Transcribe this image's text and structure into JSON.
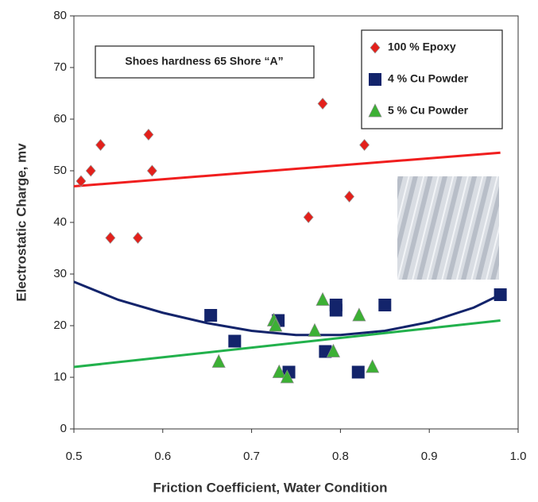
{
  "chart_data": {
    "type": "scatter",
    "annotation": "Shoes hardness 65 Shore “A”",
    "x_label": "Friction Coefficient, Water  Condition",
    "y_label": "Electrostatic Charge, mv",
    "xlim": [
      0.5,
      1.0
    ],
    "ylim": [
      0,
      80
    ],
    "xticks": [
      0.5,
      0.6,
      0.7,
      0.8,
      0.9,
      {
        "value": 1.0,
        "label": "1.0"
      }
    ],
    "yticks": [
      0,
      10,
      20,
      30,
      40,
      50,
      60,
      70,
      80
    ],
    "series": [
      {
        "name": "100 % Epoxy",
        "color": "#e3201b",
        "marker": "diamond",
        "x": [
          0.508,
          0.519,
          0.53,
          0.541,
          0.572,
          0.584,
          0.588,
          0.764,
          0.78,
          0.81,
          0.827
        ],
        "values": [
          48,
          50,
          55,
          37,
          37,
          57,
          50,
          41,
          63,
          45,
          55
        ]
      },
      {
        "name": "4 % Cu Powder",
        "color": "#13246b",
        "marker": "square",
        "x": [
          0.654,
          0.681,
          0.73,
          0.742,
          0.783,
          0.795,
          0.795,
          0.82,
          0.85,
          0.98
        ],
        "values": [
          22,
          17,
          21,
          11,
          15,
          24,
          23,
          11,
          24,
          26
        ]
      },
      {
        "name": "5 % Cu Powder",
        "color": "#3cb034",
        "marker": "triangle",
        "x": [
          0.663,
          0.725,
          0.727,
          0.731,
          0.74,
          0.771,
          0.78,
          0.792,
          0.821,
          0.836
        ],
        "values": [
          13,
          21,
          20,
          11,
          10,
          19,
          25,
          15,
          22,
          12
        ]
      }
    ],
    "trendlines": [
      {
        "color": "#f01e1e",
        "x": [
          0.5,
          0.98
        ],
        "values": [
          47,
          53.5
        ]
      },
      {
        "color": "#13246b",
        "x": [
          0.5,
          0.55,
          0.6,
          0.65,
          0.7,
          0.75,
          0.8,
          0.85,
          0.9,
          0.95,
          0.98
        ],
        "values": [
          28.5,
          25,
          22.5,
          20.5,
          19,
          18.2,
          18.2,
          19,
          20.7,
          23.5,
          26
        ]
      },
      {
        "color": "#22b14c",
        "x": [
          0.5,
          0.98
        ],
        "values": [
          12,
          21
        ]
      }
    ]
  }
}
